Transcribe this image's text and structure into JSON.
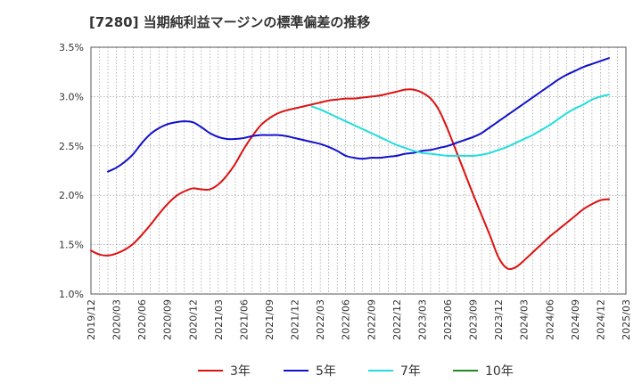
{
  "title": "[7280]  当期純利益マージンの標準偏差の推移",
  "chart_data": {
    "type": "line",
    "title": "[7280]  当期純利益マージンの標準偏差の推移",
    "xlabel": "",
    "ylabel": "",
    "ylim": [
      1.0,
      3.5
    ],
    "yticks": [
      "3.5%",
      "3.0%",
      "2.5%",
      "2.0%",
      "1.5%",
      "1.0%"
    ],
    "ytick_values": [
      3.5,
      3.0,
      2.5,
      2.0,
      1.5,
      1.0
    ],
    "xticks": [
      "2019/12",
      "2020/03",
      "2020/06",
      "2020/09",
      "2020/12",
      "2021/03",
      "2021/06",
      "2021/09",
      "2021/12",
      "2022/03",
      "2022/06",
      "2022/09",
      "2022/12",
      "2023/03",
      "2023/06",
      "2023/09",
      "2023/12",
      "2024/03",
      "2024/06",
      "2024/09",
      "2024/12",
      "2025/03"
    ],
    "grid": true,
    "legend_position": "bottom",
    "series": [
      {
        "name": "3年",
        "color": "#dd1111",
        "values": [
          {
            "x": "2019/12",
            "y": 1.44
          },
          {
            "x": "2020/01",
            "y": 1.4
          },
          {
            "x": "2020/02",
            "y": 1.39
          },
          {
            "x": "2020/03",
            "y": 1.41
          },
          {
            "x": "2020/04",
            "y": 1.45
          },
          {
            "x": "2020/05",
            "y": 1.51
          },
          {
            "x": "2020/06",
            "y": 1.6
          },
          {
            "x": "2020/07",
            "y": 1.7
          },
          {
            "x": "2020/08",
            "y": 1.81
          },
          {
            "x": "2020/09",
            "y": 1.91
          },
          {
            "x": "2020/10",
            "y": 1.99
          },
          {
            "x": "2020/11",
            "y": 2.04
          },
          {
            "x": "2020/12",
            "y": 2.07
          },
          {
            "x": "2021/01",
            "y": 2.06
          },
          {
            "x": "2021/02",
            "y": 2.06
          },
          {
            "x": "2021/03",
            "y": 2.11
          },
          {
            "x": "2021/04",
            "y": 2.2
          },
          {
            "x": "2021/05",
            "y": 2.32
          },
          {
            "x": "2021/06",
            "y": 2.47
          },
          {
            "x": "2021/07",
            "y": 2.6
          },
          {
            "x": "2021/08",
            "y": 2.71
          },
          {
            "x": "2021/09",
            "y": 2.78
          },
          {
            "x": "2021/10",
            "y": 2.83
          },
          {
            "x": "2021/11",
            "y": 2.86
          },
          {
            "x": "2021/12",
            "y": 2.88
          },
          {
            "x": "2022/01",
            "y": 2.9
          },
          {
            "x": "2022/02",
            "y": 2.92
          },
          {
            "x": "2022/03",
            "y": 2.94
          },
          {
            "x": "2022/04",
            "y": 2.96
          },
          {
            "x": "2022/05",
            "y": 2.97
          },
          {
            "x": "2022/06",
            "y": 2.98
          },
          {
            "x": "2022/07",
            "y": 2.98
          },
          {
            "x": "2022/08",
            "y": 2.99
          },
          {
            "x": "2022/09",
            "y": 3.0
          },
          {
            "x": "2022/10",
            "y": 3.01
          },
          {
            "x": "2022/11",
            "y": 3.03
          },
          {
            "x": "2022/12",
            "y": 3.05
          },
          {
            "x": "2023/01",
            "y": 3.07
          },
          {
            "x": "2023/02",
            "y": 3.07
          },
          {
            "x": "2023/03",
            "y": 3.04
          },
          {
            "x": "2023/04",
            "y": 2.98
          },
          {
            "x": "2023/05",
            "y": 2.86
          },
          {
            "x": "2023/06",
            "y": 2.67
          },
          {
            "x": "2023/07",
            "y": 2.45
          },
          {
            "x": "2023/08",
            "y": 2.23
          },
          {
            "x": "2023/09",
            "y": 2.01
          },
          {
            "x": "2023/10",
            "y": 1.8
          },
          {
            "x": "2023/11",
            "y": 1.59
          },
          {
            "x": "2023/12",
            "y": 1.37
          },
          {
            "x": "2024/01",
            "y": 1.26
          },
          {
            "x": "2024/02",
            "y": 1.27
          },
          {
            "x": "2024/03",
            "y": 1.34
          },
          {
            "x": "2024/04",
            "y": 1.42
          },
          {
            "x": "2024/05",
            "y": 1.5
          },
          {
            "x": "2024/06",
            "y": 1.58
          },
          {
            "x": "2024/07",
            "y": 1.65
          },
          {
            "x": "2024/08",
            "y": 1.72
          },
          {
            "x": "2024/09",
            "y": 1.79
          },
          {
            "x": "2024/10",
            "y": 1.86
          },
          {
            "x": "2024/11",
            "y": 1.91
          },
          {
            "x": "2024/12",
            "y": 1.95
          },
          {
            "x": "2025/01",
            "y": 1.96
          }
        ]
      },
      {
        "name": "5年",
        "color": "#1111cc",
        "values": [
          {
            "x": "2020/02",
            "y": 2.24
          },
          {
            "x": "2020/03",
            "y": 2.28
          },
          {
            "x": "2020/04",
            "y": 2.34
          },
          {
            "x": "2020/05",
            "y": 2.42
          },
          {
            "x": "2020/06",
            "y": 2.53
          },
          {
            "x": "2020/07",
            "y": 2.62
          },
          {
            "x": "2020/08",
            "y": 2.68
          },
          {
            "x": "2020/09",
            "y": 2.72
          },
          {
            "x": "2020/10",
            "y": 2.74
          },
          {
            "x": "2020/11",
            "y": 2.75
          },
          {
            "x": "2020/12",
            "y": 2.74
          },
          {
            "x": "2021/01",
            "y": 2.69
          },
          {
            "x": "2021/02",
            "y": 2.63
          },
          {
            "x": "2021/03",
            "y": 2.59
          },
          {
            "x": "2021/04",
            "y": 2.57
          },
          {
            "x": "2021/05",
            "y": 2.57
          },
          {
            "x": "2021/06",
            "y": 2.58
          },
          {
            "x": "2021/07",
            "y": 2.6
          },
          {
            "x": "2021/08",
            "y": 2.61
          },
          {
            "x": "2021/09",
            "y": 2.61
          },
          {
            "x": "2021/10",
            "y": 2.61
          },
          {
            "x": "2021/11",
            "y": 2.6
          },
          {
            "x": "2021/12",
            "y": 2.58
          },
          {
            "x": "2022/01",
            "y": 2.56
          },
          {
            "x": "2022/02",
            "y": 2.54
          },
          {
            "x": "2022/03",
            "y": 2.52
          },
          {
            "x": "2022/04",
            "y": 2.49
          },
          {
            "x": "2022/05",
            "y": 2.45
          },
          {
            "x": "2022/06",
            "y": 2.4
          },
          {
            "x": "2022/07",
            "y": 2.38
          },
          {
            "x": "2022/08",
            "y": 2.37
          },
          {
            "x": "2022/09",
            "y": 2.38
          },
          {
            "x": "2022/10",
            "y": 2.38
          },
          {
            "x": "2022/11",
            "y": 2.39
          },
          {
            "x": "2022/12",
            "y": 2.4
          },
          {
            "x": "2023/01",
            "y": 2.42
          },
          {
            "x": "2023/02",
            "y": 2.43
          },
          {
            "x": "2023/03",
            "y": 2.45
          },
          {
            "x": "2023/04",
            "y": 2.46
          },
          {
            "x": "2023/05",
            "y": 2.48
          },
          {
            "x": "2023/06",
            "y": 2.5
          },
          {
            "x": "2023/07",
            "y": 2.53
          },
          {
            "x": "2023/08",
            "y": 2.56
          },
          {
            "x": "2023/09",
            "y": 2.59
          },
          {
            "x": "2023/10",
            "y": 2.63
          },
          {
            "x": "2023/11",
            "y": 2.69
          },
          {
            "x": "2023/12",
            "y": 2.75
          },
          {
            "x": "2024/01",
            "y": 2.81
          },
          {
            "x": "2024/02",
            "y": 2.87
          },
          {
            "x": "2024/03",
            "y": 2.93
          },
          {
            "x": "2024/04",
            "y": 2.99
          },
          {
            "x": "2024/05",
            "y": 3.05
          },
          {
            "x": "2024/06",
            "y": 3.11
          },
          {
            "x": "2024/07",
            "y": 3.17
          },
          {
            "x": "2024/08",
            "y": 3.22
          },
          {
            "x": "2024/09",
            "y": 3.26
          },
          {
            "x": "2024/10",
            "y": 3.3
          },
          {
            "x": "2024/11",
            "y": 3.33
          },
          {
            "x": "2024/12",
            "y": 3.36
          },
          {
            "x": "2025/01",
            "y": 3.39
          }
        ]
      },
      {
        "name": "7年",
        "color": "#22dddd",
        "values": [
          {
            "x": "2022/02",
            "y": 2.9
          },
          {
            "x": "2022/03",
            "y": 2.87
          },
          {
            "x": "2022/04",
            "y": 2.83
          },
          {
            "x": "2022/05",
            "y": 2.79
          },
          {
            "x": "2022/06",
            "y": 2.75
          },
          {
            "x": "2022/07",
            "y": 2.71
          },
          {
            "x": "2022/08",
            "y": 2.67
          },
          {
            "x": "2022/09",
            "y": 2.63
          },
          {
            "x": "2022/10",
            "y": 2.59
          },
          {
            "x": "2022/11",
            "y": 2.55
          },
          {
            "x": "2022/12",
            "y": 2.51
          },
          {
            "x": "2023/01",
            "y": 2.48
          },
          {
            "x": "2023/02",
            "y": 2.45
          },
          {
            "x": "2023/03",
            "y": 2.43
          },
          {
            "x": "2023/04",
            "y": 2.42
          },
          {
            "x": "2023/05",
            "y": 2.41
          },
          {
            "x": "2023/06",
            "y": 2.4
          },
          {
            "x": "2023/07",
            "y": 2.4
          },
          {
            "x": "2023/08",
            "y": 2.4
          },
          {
            "x": "2023/09",
            "y": 2.4
          },
          {
            "x": "2023/10",
            "y": 2.41
          },
          {
            "x": "2023/11",
            "y": 2.43
          },
          {
            "x": "2023/12",
            "y": 2.46
          },
          {
            "x": "2024/01",
            "y": 2.49
          },
          {
            "x": "2024/02",
            "y": 2.53
          },
          {
            "x": "2024/03",
            "y": 2.57
          },
          {
            "x": "2024/04",
            "y": 2.61
          },
          {
            "x": "2024/05",
            "y": 2.66
          },
          {
            "x": "2024/06",
            "y": 2.71
          },
          {
            "x": "2024/07",
            "y": 2.77
          },
          {
            "x": "2024/08",
            "y": 2.83
          },
          {
            "x": "2024/09",
            "y": 2.88
          },
          {
            "x": "2024/10",
            "y": 2.92
          },
          {
            "x": "2024/11",
            "y": 2.97
          },
          {
            "x": "2024/12",
            "y": 3.0
          },
          {
            "x": "2025/01",
            "y": 3.02
          }
        ]
      },
      {
        "name": "10年",
        "color": "#228822",
        "values": []
      }
    ]
  }
}
